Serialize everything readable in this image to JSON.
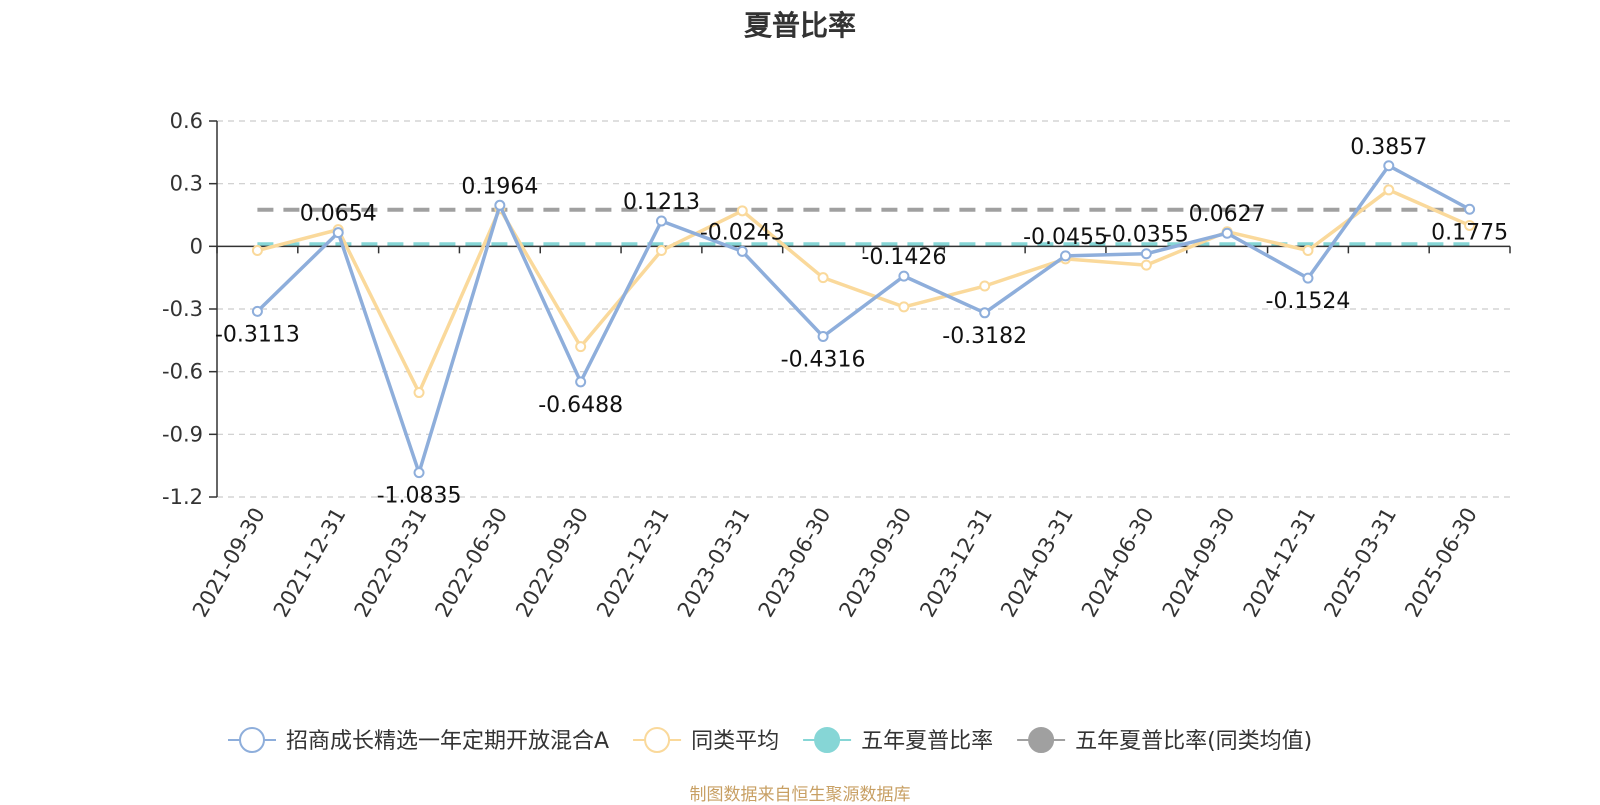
{
  "chart_data": {
    "type": "line",
    "title": "夏普比率",
    "categories": [
      "2021-09-30",
      "2021-12-31",
      "2022-03-31",
      "2022-06-30",
      "2022-09-30",
      "2022-12-31",
      "2023-03-31",
      "2023-06-30",
      "2023-09-30",
      "2023-12-31",
      "2024-03-31",
      "2024-06-30",
      "2024-09-30",
      "2024-12-31",
      "2025-03-31",
      "2025-06-30"
    ],
    "ylim": [
      -1.2,
      0.6
    ],
    "yticks": [
      0.6,
      0.3,
      0,
      -0.3,
      -0.6,
      -0.9,
      -1.2
    ],
    "grid": true,
    "legend_position": "bottom",
    "series": [
      {
        "name": "招商成长精选一年定期开放混合A",
        "color": "#8eaedb",
        "values": [
          -0.3113,
          0.0654,
          -1.0835,
          0.1964,
          -0.6488,
          0.1213,
          -0.0243,
          -0.4316,
          -0.1426,
          -0.3182,
          -0.0455,
          -0.0355,
          0.0627,
          -0.1524,
          0.3857,
          0.1775
        ],
        "labels": [
          "-0.3113",
          "0.0654",
          "-1.0835",
          "0.1964",
          "-0.6488",
          "0.1213",
          "-0.0243",
          "-0.4316",
          "-0.1426",
          "-0.3182",
          "-0.0455",
          "-0.0355",
          "0.0627",
          "-0.1524",
          "0.3857",
          "0.1775"
        ]
      },
      {
        "name": "同类平均",
        "color": "#fad99b",
        "values": [
          -0.02,
          0.08,
          -0.7,
          0.18,
          -0.48,
          -0.02,
          0.17,
          -0.15,
          -0.29,
          -0.19,
          -0.06,
          -0.09,
          0.07,
          -0.02,
          0.27,
          0.1
        ]
      },
      {
        "name": "五年夏普比率",
        "color": "#86d6d6",
        "constant": 0.01,
        "dashed": true
      },
      {
        "name": "五年夏普比率(同类均值)",
        "color": "#a0a0a0",
        "constant": 0.175,
        "dashed": true
      }
    ]
  },
  "source_note": "制图数据来自恒生聚源数据库"
}
